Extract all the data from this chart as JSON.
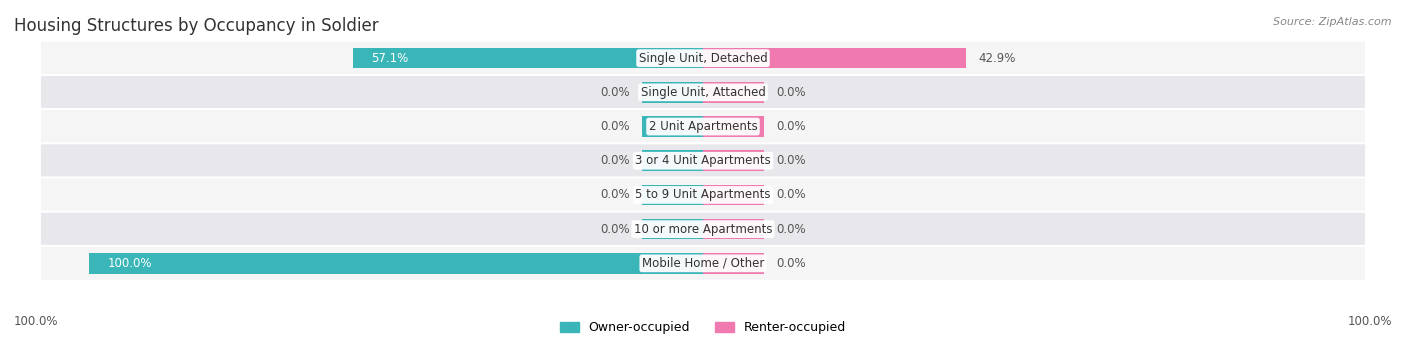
{
  "title": "Housing Structures by Occupancy in Soldier",
  "source": "Source: ZipAtlas.com",
  "categories": [
    "Single Unit, Detached",
    "Single Unit, Attached",
    "2 Unit Apartments",
    "3 or 4 Unit Apartments",
    "5 to 9 Unit Apartments",
    "10 or more Apartments",
    "Mobile Home / Other"
  ],
  "owner_values": [
    57.1,
    0.0,
    0.0,
    0.0,
    0.0,
    0.0,
    100.0
  ],
  "renter_values": [
    42.9,
    0.0,
    0.0,
    0.0,
    0.0,
    0.0,
    0.0
  ],
  "owner_color": "#3ab5b8",
  "renter_color": "#f07ab0",
  "row_bg_light": "#f5f5f5",
  "row_bg_dark": "#e8e8ec",
  "owner_label": "Owner-occupied",
  "renter_label": "Renter-occupied",
  "title_fontsize": 12,
  "source_fontsize": 8,
  "bar_label_fontsize": 8.5,
  "cat_label_fontsize": 8.5,
  "legend_fontsize": 9,
  "scale": 100.0,
  "bar_height": 0.6,
  "min_stub": 5.0
}
